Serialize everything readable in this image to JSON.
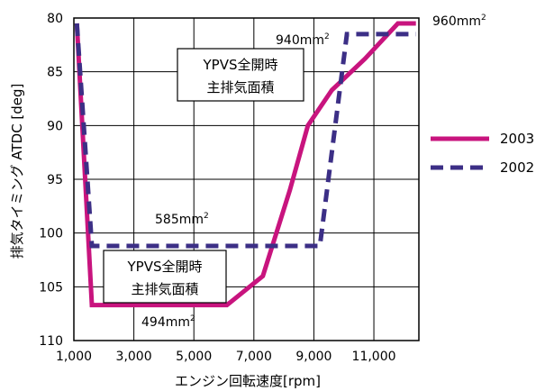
{
  "chart_data": {
    "type": "line",
    "xlabel": "エンジン回転速度[rpm]",
    "ylabel": "排気タイミング ATDC [deg]",
    "xlim": [
      1000,
      12500
    ],
    "ylim": [
      80,
      110
    ],
    "y_inverted": true,
    "grid": true,
    "xticks": [
      {
        "value": 1000,
        "label": "1,000"
      },
      {
        "value": 3000,
        "label": "3,000"
      },
      {
        "value": 5000,
        "label": "5,000"
      },
      {
        "value": 7000,
        "label": "7,000"
      },
      {
        "value": 9000,
        "label": "9,000"
      },
      {
        "value": 11000,
        "label": "11,000"
      }
    ],
    "yticks": [
      {
        "value": 80,
        "label": "80"
      },
      {
        "value": 85,
        "label": "85"
      },
      {
        "value": 90,
        "label": "90"
      },
      {
        "value": 95,
        "label": "95"
      },
      {
        "value": 100,
        "label": "100"
      },
      {
        "value": 105,
        "label": "105"
      },
      {
        "value": 110,
        "label": "110"
      }
    ],
    "legend_position": "right",
    "series": [
      {
        "name": "2003",
        "color": "#c8147e",
        "style": "solid",
        "x": [
          1100,
          1600,
          6100,
          7300,
          8200,
          8800,
          9600,
          10700,
          11800,
          12400
        ],
        "y": [
          80.5,
          106.7,
          106.7,
          104.0,
          96.0,
          90.0,
          86.7,
          83.8,
          80.5,
          80.5
        ]
      },
      {
        "name": "2002",
        "color": "#3c2f86",
        "style": "dashed",
        "x": [
          1100,
          1600,
          9200,
          10100,
          12400
        ],
        "y": [
          80.5,
          101.2,
          101.2,
          81.5,
          81.5
        ]
      }
    ],
    "annotations": [
      {
        "id": "a940",
        "base": "940mm",
        "sup": "2"
      },
      {
        "id": "a960",
        "base": "960mm",
        "sup": "2"
      },
      {
        "id": "a585",
        "base": "585mm",
        "sup": "2"
      },
      {
        "id": "a494",
        "base": "494mm",
        "sup": "2"
      }
    ],
    "boxes": [
      {
        "id": "box_top",
        "line1": "YPVS全開時",
        "line2": "主排気面積"
      },
      {
        "id": "box_bottom",
        "line1": "YPVS全開時",
        "line2": "主排気面積"
      }
    ]
  }
}
